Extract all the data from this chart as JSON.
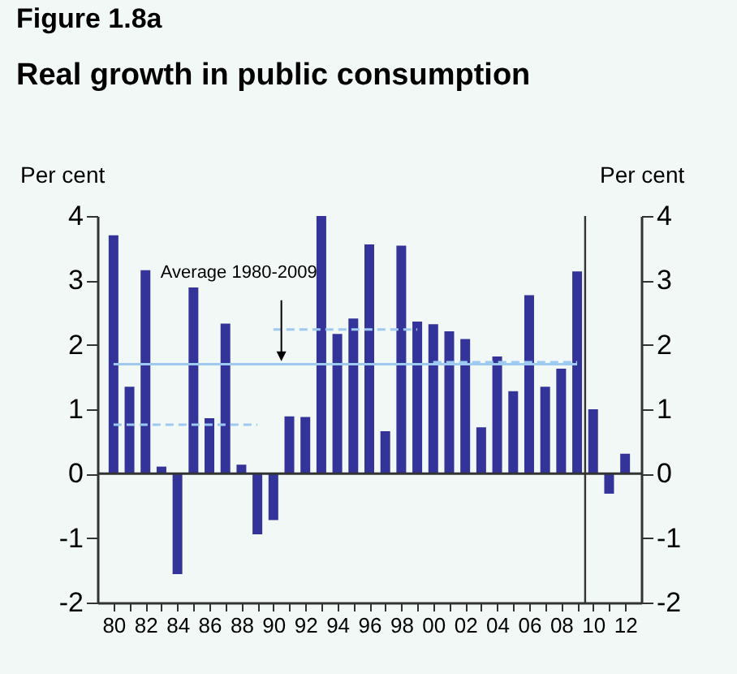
{
  "chart_data": {
    "type": "bar",
    "title": "Figure 1.8a",
    "subtitle": "Real growth in public consumption",
    "ylabel": "Per cent",
    "y2label": "Per cent",
    "x": [
      1980,
      1981,
      1982,
      1983,
      1984,
      1985,
      1986,
      1987,
      1988,
      1989,
      1990,
      1991,
      1992,
      1993,
      1994,
      1995,
      1996,
      1997,
      1998,
      1999,
      2000,
      2001,
      2002,
      2003,
      2004,
      2005,
      2006,
      2007,
      2008,
      2009,
      2010,
      2011,
      2012
    ],
    "series": [
      {
        "color": "#333399",
        "values": [
          3.7,
          1.35,
          3.16,
          0.11,
          -1.56,
          2.89,
          0.86,
          2.33,
          0.14,
          -0.94,
          -0.72,
          0.89,
          0.88,
          4.0,
          2.17,
          2.41,
          3.56,
          0.66,
          3.54,
          2.36,
          2.32,
          2.21,
          2.09,
          0.72,
          1.82,
          1.28,
          2.77,
          1.35,
          1.63,
          3.14,
          1.0,
          -0.31,
          0.31
        ]
      },
      {
        "type": "line",
        "color": "#9ecaf2",
        "line_style": "solid",
        "x": [
          1980,
          2009
        ],
        "values": [
          1.7,
          1.7
        ]
      },
      {
        "type": "line",
        "color": "#9ecaf2",
        "line_style": "dashed",
        "x": [
          1980,
          1989
        ],
        "values": [
          0.76,
          0.76
        ]
      },
      {
        "type": "line",
        "color": "#9ecaf2",
        "line_style": "dashed",
        "x": [
          1990,
          1999
        ],
        "values": [
          2.24,
          2.24
        ]
      },
      {
        "type": "line",
        "color": "#9ecaf2",
        "line_style": "dashed",
        "x": [
          2000,
          2009
        ],
        "values": [
          1.73,
          1.73
        ]
      }
    ],
    "xlim": [
      1979.5,
      2012.5
    ],
    "xticks": [
      {
        "value": 1980,
        "label": "80"
      },
      {
        "value": 1981,
        "label": null
      },
      {
        "value": 1982,
        "label": "82"
      },
      {
        "value": 1983,
        "label": null
      },
      {
        "value": 1984,
        "label": "84"
      },
      {
        "value": 1985,
        "label": null
      },
      {
        "value": 1986,
        "label": "86"
      },
      {
        "value": 1987,
        "label": null
      },
      {
        "value": 1988,
        "label": "88"
      },
      {
        "value": 1989,
        "label": null
      },
      {
        "value": 1990,
        "label": "90"
      },
      {
        "value": 1991,
        "label": null
      },
      {
        "value": 1992,
        "label": "92"
      },
      {
        "value": 1993,
        "label": null
      },
      {
        "value": 1994,
        "label": "94"
      },
      {
        "value": 1995,
        "label": null
      },
      {
        "value": 1996,
        "label": "96"
      },
      {
        "value": 1997,
        "label": null
      },
      {
        "value": 1998,
        "label": "98"
      },
      {
        "value": 1999,
        "label": null
      },
      {
        "value": 2000,
        "label": "00"
      },
      {
        "value": 2001,
        "label": null
      },
      {
        "value": 2002,
        "label": "02"
      },
      {
        "value": 2003,
        "label": null
      },
      {
        "value": 2004,
        "label": "04"
      },
      {
        "value": 2005,
        "label": null
      },
      {
        "value": 2006,
        "label": "06"
      },
      {
        "value": 2007,
        "label": null
      },
      {
        "value": 2008,
        "label": "08"
      },
      {
        "value": 2009,
        "label": null
      },
      {
        "value": 2010,
        "label": "10"
      },
      {
        "value": 2011,
        "label": null
      },
      {
        "value": 2012,
        "label": "12"
      }
    ],
    "ylim": [
      -2,
      4
    ],
    "yticks": [
      -2,
      -1,
      0,
      1,
      2,
      3,
      4
    ],
    "y2lim": [
      -2,
      4
    ],
    "y2ticks": [
      -2,
      -1,
      0,
      1,
      2,
      3,
      4
    ],
    "ref_lines": [
      {
        "axis": "y",
        "value": 0,
        "color": "#333333"
      },
      {
        "axis": "x",
        "value": 2009.5,
        "color": "#333333"
      }
    ],
    "annotations": [
      {
        "text": "Average 1980-2009",
        "x": 1990.5,
        "y": 1.7
      }
    ],
    "grid": false
  }
}
